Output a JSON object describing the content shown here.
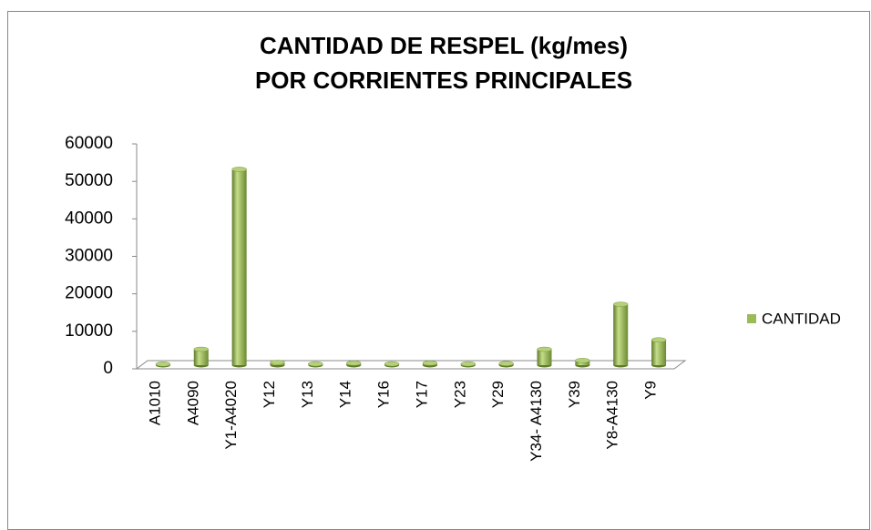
{
  "chart_data": {
    "type": "bar3d",
    "title": [
      "CANTIDAD DE RESPEL (kg/mes)",
      "POR CORRIENTES PRINCIPALES"
    ],
    "categories": [
      "A1010",
      "A4090",
      "Y1-A4020",
      "Y12",
      "Y13",
      "Y14",
      "Y16",
      "Y17",
      "Y23",
      "Y29",
      "Y34- A4130",
      "Y39",
      "Y8-A4130",
      "Y9"
    ],
    "series": [
      {
        "name": "CANTIDAD",
        "color": "#9bbb59",
        "values": [
          50,
          4000,
          52000,
          500,
          100,
          300,
          100,
          300,
          100,
          200,
          4000,
          1000,
          16000,
          6500
        ]
      }
    ],
    "ylim": [
      0,
      60000
    ],
    "yticks": [
      0,
      10000,
      20000,
      30000,
      40000,
      50000,
      60000
    ],
    "legend": "right"
  }
}
